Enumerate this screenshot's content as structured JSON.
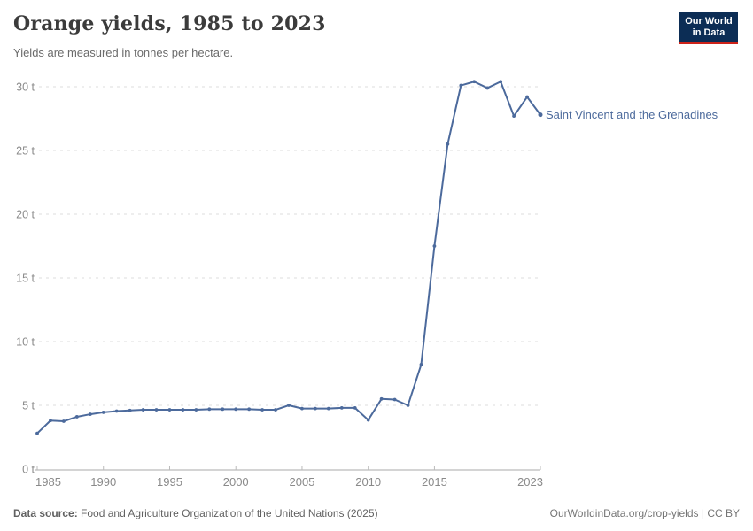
{
  "header": {
    "title": "Orange yields, 1985 to 2023",
    "subtitle": "Yields are measured in tonnes per hectare."
  },
  "logo": {
    "line1": "Our World",
    "line2": "in Data",
    "bg_color": "#0c2d55",
    "accent_color": "#cd2319"
  },
  "chart_data": {
    "type": "line",
    "title": "Orange yields, 1985 to 2023",
    "unit": "tonnes per hectare",
    "x": [
      1985,
      1986,
      1987,
      1988,
      1989,
      1990,
      1991,
      1992,
      1993,
      1994,
      1995,
      1996,
      1997,
      1998,
      1999,
      2000,
      2001,
      2002,
      2003,
      2004,
      2005,
      2006,
      2007,
      2008,
      2009,
      2010,
      2011,
      2012,
      2013,
      2014,
      2015,
      2016,
      2017,
      2018,
      2019,
      2020,
      2021,
      2022,
      2023
    ],
    "series": [
      {
        "name": "Saint Vincent and the Grenadines",
        "color": "#4C6A9C",
        "values": [
          2.8,
          3.8,
          3.75,
          4.1,
          4.3,
          4.45,
          4.55,
          4.6,
          4.65,
          4.65,
          4.65,
          4.65,
          4.65,
          4.7,
          4.7,
          4.7,
          4.7,
          4.65,
          4.65,
          5.0,
          4.75,
          4.75,
          4.75,
          4.8,
          4.8,
          3.85,
          5.5,
          5.45,
          5.0,
          8.2,
          17.5,
          25.5,
          30.1,
          30.4,
          29.9,
          30.4,
          27.7,
          29.2,
          27.8
        ]
      }
    ],
    "xlabel": "",
    "ylabel": "",
    "ylim": [
      0,
      30
    ],
    "xlim": [
      1985,
      2023
    ],
    "y_ticks": [
      0,
      5,
      10,
      15,
      20,
      25,
      30
    ],
    "y_tick_suffix": " t",
    "x_ticks": [
      1985,
      1990,
      1995,
      2000,
      2005,
      2010,
      2015,
      2023
    ],
    "grid": "horizontal-dashed",
    "legend_position": "end-of-line-label"
  },
  "end_label": "Saint Vincent and the Grenadines",
  "footer": {
    "source_label": "Data source:",
    "source_text": "Food and Agriculture Organization of the United Nations (2025)",
    "link_text": "OurWorldinData.org/crop-yields",
    "separator": "|",
    "license": "CC BY"
  },
  "colors": {
    "line": "#4C6A9C",
    "gridline": "#dddddd",
    "axis": "#a8a8a8",
    "tick": "#bbbbbb",
    "tick_label": "#8a8a8a",
    "title": "#3b3b3b",
    "subtitle": "#6b6b6b"
  }
}
